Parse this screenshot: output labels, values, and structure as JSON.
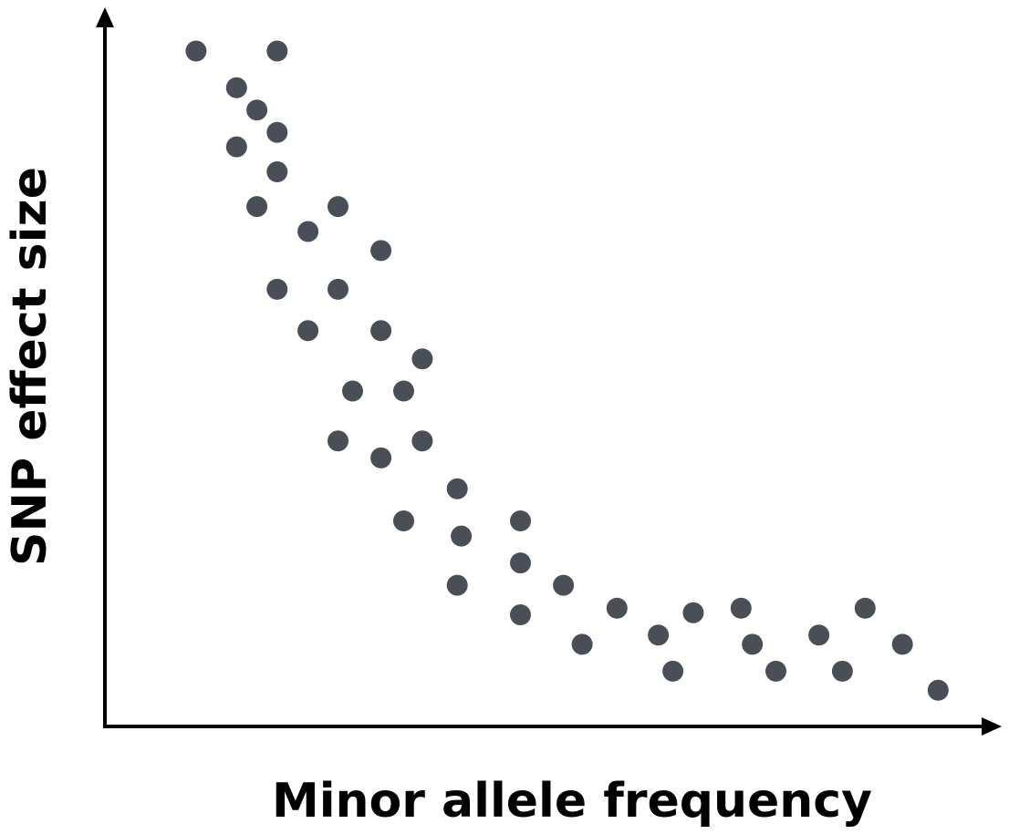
{
  "chart_data": {
    "type": "scatter",
    "xlabel": "Minor allele frequency",
    "ylabel": "SNP effect size",
    "xlim": [
      0,
      100
    ],
    "ylim": [
      0,
      100
    ],
    "x_ticks": false,
    "y_ticks": false,
    "grid": false,
    "legend": false,
    "point_color": "#4a4e57",
    "axis_color": "#000000",
    "series": [
      {
        "points": [
          [
            5.5,
            100.0
          ],
          [
            10.5,
            94.4
          ],
          [
            13.0,
            91.0
          ],
          [
            15.5,
            100.0
          ],
          [
            15.5,
            87.6
          ],
          [
            10.5,
            85.4
          ],
          [
            15.5,
            81.6
          ],
          [
            13.0,
            76.3
          ],
          [
            19.3,
            72.5
          ],
          [
            23.0,
            76.3
          ],
          [
            28.3,
            69.6
          ],
          [
            15.5,
            63.7
          ],
          [
            23.0,
            63.7
          ],
          [
            19.3,
            57.4
          ],
          [
            28.3,
            57.4
          ],
          [
            33.4,
            53.1
          ],
          [
            24.8,
            48.2
          ],
          [
            31.1,
            48.2
          ],
          [
            23.0,
            40.6
          ],
          [
            28.3,
            38.0
          ],
          [
            33.4,
            40.6
          ],
          [
            37.7,
            33.3
          ],
          [
            38.2,
            26.1
          ],
          [
            31.1,
            28.4
          ],
          [
            45.5,
            28.4
          ],
          [
            37.7,
            18.6
          ],
          [
            45.5,
            22.0
          ],
          [
            50.8,
            18.6
          ],
          [
            45.5,
            14.1
          ],
          [
            53.1,
            9.6
          ],
          [
            57.4,
            15.1
          ],
          [
            62.5,
            11.0
          ],
          [
            64.3,
            5.5
          ],
          [
            66.8,
            14.4
          ],
          [
            72.7,
            15.1
          ],
          [
            74.1,
            9.6
          ],
          [
            77.0,
            5.5
          ],
          [
            82.3,
            11.0
          ],
          [
            85.2,
            5.5
          ],
          [
            88.0,
            15.1
          ],
          [
            92.6,
            9.6
          ],
          [
            97.0,
            2.6
          ]
        ]
      }
    ]
  }
}
